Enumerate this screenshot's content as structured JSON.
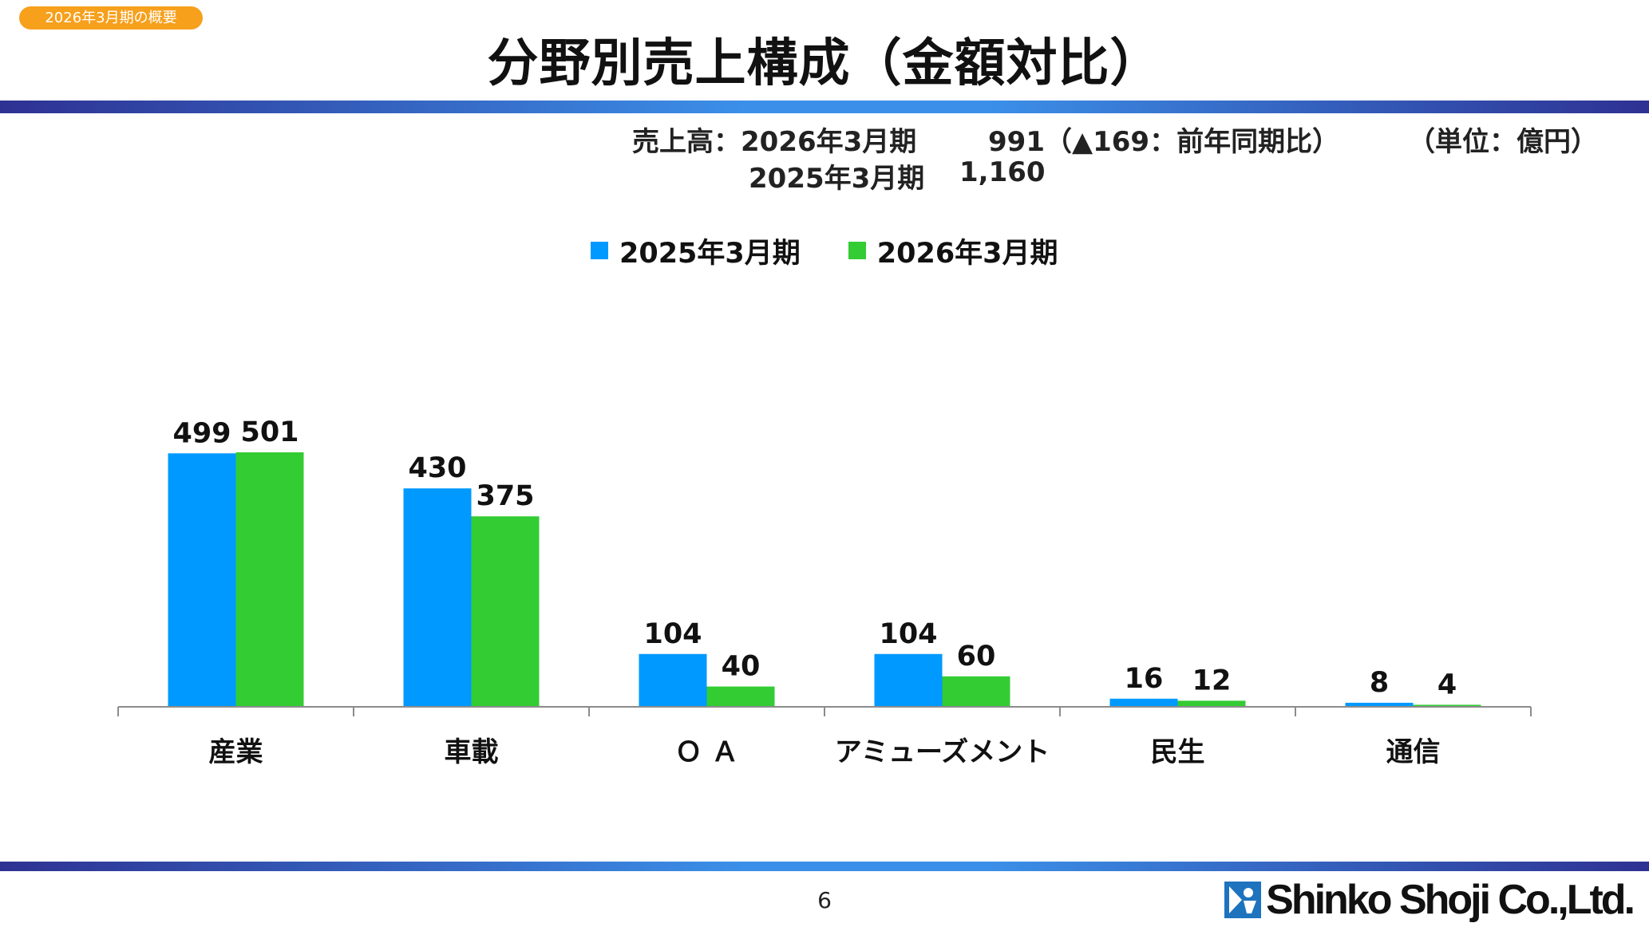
{
  "header": {
    "badge": "2026年3月期の概要",
    "title": "分野別売上構成（金額対比）"
  },
  "sales_summary": {
    "label": "売上高：",
    "current_period": "2026年3月期",
    "current_value": "991（▲169：前年同期比）",
    "previous_period": "2025年3月期",
    "previous_value": "1,160",
    "unit": "（単位：億円）"
  },
  "chart_data": {
    "type": "bar",
    "categories": [
      "産業",
      "車載",
      "Ｏ Ａ",
      "アミューズメント",
      "民生",
      "通信"
    ],
    "series": [
      {
        "name": "2025年3月期",
        "color": "#0099ff",
        "values": [
          499,
          430,
          104,
          104,
          16,
          8
        ]
      },
      {
        "name": "2026年3月期",
        "color": "#33cc33",
        "values": [
          501,
          375,
          40,
          60,
          12,
          4
        ]
      }
    ],
    "ylim": [
      0,
      501
    ],
    "legend": "top-center",
    "grid": false
  },
  "footer": {
    "page_number": "6",
    "company": "Shinko Shoji Co.,Ltd."
  }
}
